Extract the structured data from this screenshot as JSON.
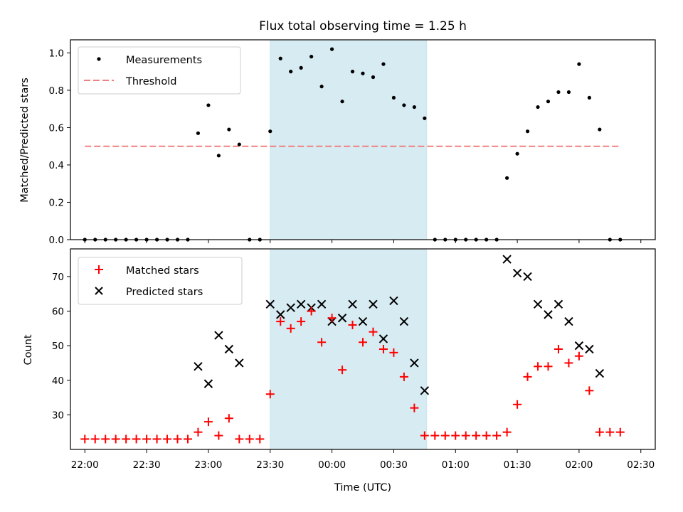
{
  "chart_data": [
    {
      "type": "scatter",
      "title": "Flux total observing time = 1.25 h",
      "xlabel": "",
      "ylabel": "Matched/Predicted stars",
      "ylim": [
        0,
        1.07
      ],
      "yticks": [
        "0.0",
        "0.2",
        "0.4",
        "0.6",
        "0.8",
        "1.0"
      ],
      "ytick_values": [
        0,
        0.2,
        0.4,
        0.6,
        0.8,
        1.0
      ],
      "legend_position": "top-left",
      "highlight_span": [
        "23:30",
        "00:46"
      ],
      "series": [
        {
          "name": "Measurements",
          "marker": "dot",
          "color": "#000000",
          "x": [
            "22:00",
            "22:05",
            "22:10",
            "22:15",
            "22:20",
            "22:25",
            "22:30",
            "22:35",
            "22:40",
            "22:45",
            "22:50",
            "22:55",
            "23:00",
            "23:05",
            "23:10",
            "23:15",
            "23:20",
            "23:25",
            "23:30",
            "23:35",
            "23:40",
            "23:45",
            "23:50",
            "23:55",
            "00:00",
            "00:05",
            "00:10",
            "00:15",
            "00:20",
            "00:25",
            "00:30",
            "00:35",
            "00:40",
            "00:45",
            "00:50",
            "00:55",
            "01:00",
            "01:05",
            "01:10",
            "01:15",
            "01:20",
            "01:25",
            "01:30",
            "01:35",
            "01:40",
            "01:45",
            "01:50",
            "01:55",
            "02:00",
            "02:05",
            "02:10",
            "02:15",
            "02:20"
          ],
          "y": [
            0,
            0,
            0,
            0,
            0,
            0,
            0,
            0,
            0,
            0,
            0,
            0.57,
            0.72,
            0.45,
            0.59,
            0.51,
            0,
            0,
            0.58,
            0.97,
            0.9,
            0.92,
            0.98,
            0.82,
            1.02,
            0.74,
            0.9,
            0.89,
            0.87,
            0.94,
            0.76,
            0.72,
            0.71,
            0.65,
            0,
            0,
            0,
            0,
            0,
            0,
            0,
            0.33,
            0.46,
            0.58,
            0.71,
            0.74,
            0.79,
            0.79,
            0.94,
            0.76,
            0.59,
            0,
            0
          ]
        },
        {
          "name": "Threshold",
          "style": "dashed",
          "color": "#f08080",
          "x": [
            "22:00",
            "02:20"
          ],
          "y": [
            0.5,
            0.5
          ]
        }
      ]
    },
    {
      "type": "scatter",
      "title": "",
      "xlabel": "Time (UTC)",
      "ylabel": "Count",
      "ylim": [
        20,
        78
      ],
      "yticks": [
        "30",
        "40",
        "50",
        "60",
        "70"
      ],
      "ytick_values": [
        30,
        40,
        50,
        60,
        70
      ],
      "xticks": [
        "22:00",
        "22:30",
        "23:00",
        "23:30",
        "00:00",
        "00:30",
        "01:00",
        "01:30",
        "02:00",
        "02:30"
      ],
      "legend_position": "top-left",
      "highlight_span": [
        "23:30",
        "00:46"
      ],
      "series": [
        {
          "name": "Matched stars",
          "marker": "plus",
          "color": "#ff0000",
          "x": [
            "22:00",
            "22:05",
            "22:10",
            "22:15",
            "22:20",
            "22:25",
            "22:30",
            "22:35",
            "22:40",
            "22:45",
            "22:50",
            "22:55",
            "23:00",
            "23:05",
            "23:10",
            "23:15",
            "23:20",
            "23:25",
            "23:30",
            "23:35",
            "23:40",
            "23:45",
            "23:50",
            "23:55",
            "00:00",
            "00:05",
            "00:10",
            "00:15",
            "00:20",
            "00:25",
            "00:30",
            "00:35",
            "00:40",
            "00:45",
            "00:50",
            "00:55",
            "01:00",
            "01:05",
            "01:10",
            "01:15",
            "01:20",
            "01:25",
            "01:30",
            "01:35",
            "01:40",
            "01:45",
            "01:50",
            "01:55",
            "02:00",
            "02:05",
            "02:10",
            "02:15",
            "02:20"
          ],
          "y": [
            23,
            23,
            23,
            23,
            23,
            23,
            23,
            23,
            23,
            23,
            23,
            25,
            28,
            24,
            29,
            23,
            23,
            23,
            36,
            57,
            55,
            57,
            60,
            51,
            58,
            43,
            56,
            51,
            54,
            49,
            48,
            41,
            32,
            24,
            24,
            24,
            24,
            24,
            24,
            24,
            24,
            25,
            33,
            41,
            44,
            44,
            49,
            45,
            47,
            37,
            25,
            25,
            25
          ]
        },
        {
          "name": "Predicted stars",
          "marker": "x",
          "color": "#000000",
          "x": [
            "22:55",
            "23:00",
            "23:05",
            "23:10",
            "23:15",
            "23:30",
            "23:35",
            "23:40",
            "23:45",
            "23:50",
            "23:55",
            "00:00",
            "00:05",
            "00:10",
            "00:15",
            "00:20",
            "00:25",
            "00:30",
            "00:35",
            "00:40",
            "00:45",
            "01:25",
            "01:30",
            "01:35",
            "01:40",
            "01:45",
            "01:50",
            "01:55",
            "02:00",
            "02:05",
            "02:10"
          ],
          "y": [
            44,
            39,
            53,
            49,
            45,
            62,
            59,
            61,
            62,
            61,
            62,
            57,
            58,
            62,
            57,
            62,
            52,
            63,
            57,
            45,
            37,
            75,
            71,
            70,
            62,
            59,
            62,
            57,
            50,
            49,
            42
          ]
        }
      ]
    }
  ]
}
